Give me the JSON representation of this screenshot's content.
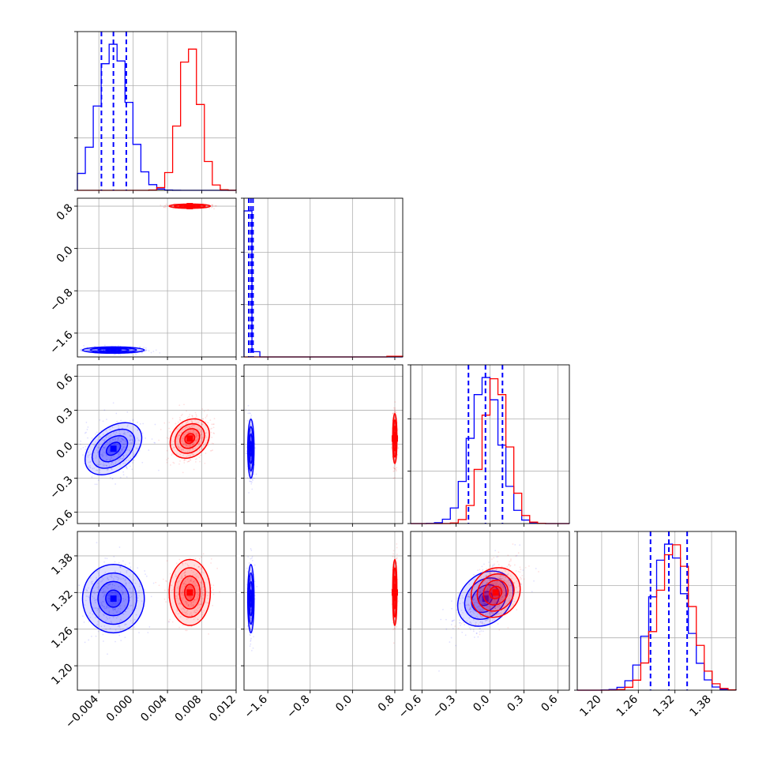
{
  "colors": {
    "series_a": "#0000ff",
    "series_b": "#ff0000",
    "grid": "#b0b0b0"
  },
  "chart_data": {
    "type": "corner",
    "grid": true,
    "legend": "none",
    "series": [
      {
        "color": "#0000ff",
        "means": [
          -0.0023,
          -1.92,
          -0.04,
          1.31
        ],
        "sigmas": [
          0.0018,
          0.03,
          0.13,
          0.028
        ],
        "quantiles": [
          [
            -0.0037,
            -0.0023,
            -0.0008
          ],
          [
            -1.96,
            -1.92,
            -1.88
          ],
          [
            -0.19,
            -0.04,
            0.11
          ],
          [
            1.28,
            1.31,
            1.34
          ]
        ],
        "corr_c_d": 0.5
      },
      {
        "color": "#ff0000",
        "means": [
          0.0066,
          0.8,
          0.05,
          1.32
        ],
        "sigmas": [
          0.0012,
          0.02,
          0.11,
          0.027
        ],
        "corr_c_d": 0.45
      }
    ],
    "params": [
      {
        "range": [
          -0.0065,
          0.012
        ],
        "ticks": [
          "−0.004",
          "0.000",
          "0.004",
          "0.008",
          "0.012"
        ],
        "tick_values": [
          -0.004,
          0.0,
          0.004,
          0.008,
          0.012
        ]
      },
      {
        "range": [
          -2.05,
          0.95
        ],
        "ticks": [
          "−1.6",
          "−0.8",
          "0.0",
          "0.8"
        ],
        "tick_values": [
          -1.6,
          -0.8,
          0.0,
          0.8
        ]
      },
      {
        "range": [
          -0.7,
          0.7
        ],
        "ticks": [
          "−0.6",
          "−0.3",
          "0.0",
          "0.3",
          "0.6"
        ],
        "tick_values": [
          -0.6,
          -0.3,
          0.0,
          0.3,
          0.6
        ]
      },
      {
        "range": [
          1.16,
          1.42
        ],
        "ticks": [
          "1.20",
          "1.26",
          "1.32",
          "1.38"
        ],
        "tick_values": [
          1.2,
          1.26,
          1.32,
          1.38
        ]
      }
    ]
  }
}
